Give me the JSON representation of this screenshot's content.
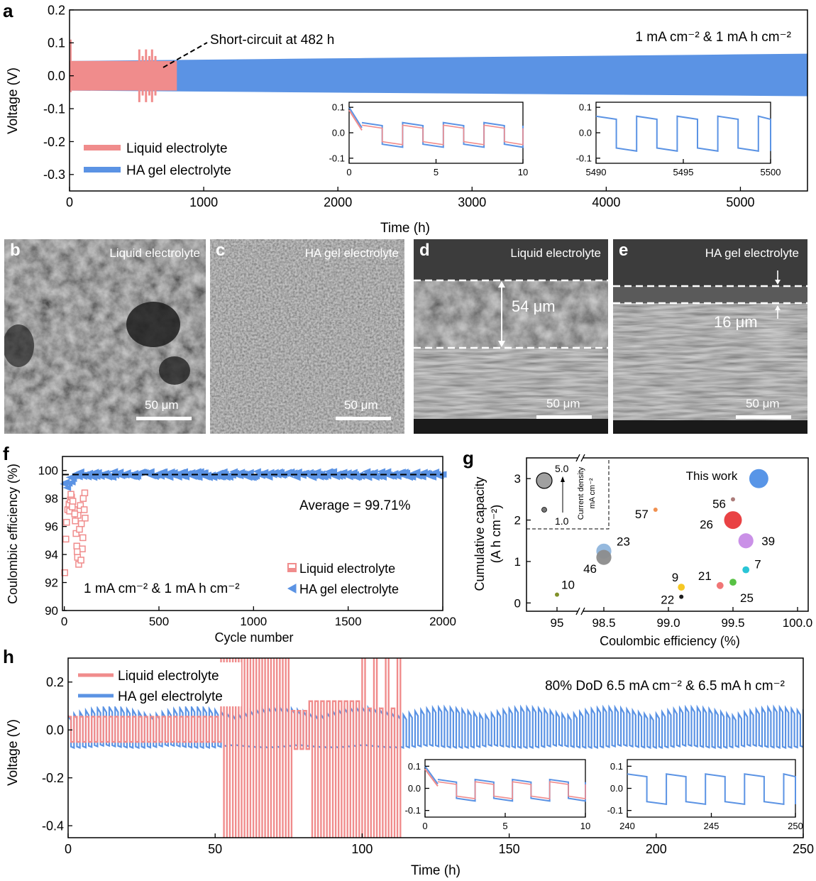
{
  "colors": {
    "liquid": "#f08c8c",
    "gel": "#5b93e4",
    "axis": "#000000"
  },
  "panel_letters": {
    "a": "a",
    "b": "b",
    "c": "c",
    "d": "d",
    "e": "e",
    "f": "f",
    "g": "g",
    "h": "h"
  },
  "sem_panels": {
    "b": {
      "label": "Liquid electrolyte",
      "scale": "50 μm"
    },
    "c": {
      "label": "HA gel electrolyte",
      "scale": "50 μm"
    },
    "d": {
      "label": "Liquid electrolyte",
      "scale": "50 μm",
      "thickness": "54 μm"
    },
    "e": {
      "label": "HA gel electrolyte",
      "scale": "50 μm",
      "thickness": "16 μm"
    }
  },
  "chart_data": [
    {
      "id": "a",
      "type": "line",
      "title": "",
      "xlabel": "Time (h)",
      "ylabel": "Voltage (V)",
      "xlim": [
        0,
        5500
      ],
      "ylim": [
        -0.35,
        0.2
      ],
      "xticks": [
        0,
        1000,
        2000,
        3000,
        4000,
        5000
      ],
      "yticks": [
        -0.3,
        -0.2,
        -0.1,
        0.0,
        0.1,
        0.2
      ],
      "ytick_labels": [
        "-0.3",
        "-0.2",
        "-0.1",
        "0.0",
        "0.1",
        "0.2"
      ],
      "series": [
        {
          "name": "Liquid electrolyte",
          "x": [
            0,
            800
          ],
          "band": [
            -0.045,
            0.045
          ],
          "spike_max": 0.11,
          "end_h": 800
        },
        {
          "name": "HA gel electrolyte",
          "x": [
            0,
            5500
          ],
          "band_start": [
            -0.045,
            0.045
          ],
          "band_end": [
            -0.062,
            0.067
          ]
        }
      ],
      "annotations": {
        "short_circuit": "Short-circuit at 482 h",
        "condition": "1 mA cm⁻² & 1 mA h cm⁻²"
      },
      "insets": [
        {
          "xlim": [
            0,
            10
          ],
          "ylim": [
            -0.12,
            0.12
          ],
          "xticks": [
            0,
            5,
            10
          ],
          "yticks": [
            "-0.1",
            "0.0",
            "0.1"
          ],
          "both_series": true
        },
        {
          "xlim": [
            5490,
            5500
          ],
          "ylim": [
            -0.12,
            0.12
          ],
          "xticks": [
            5490,
            5495,
            5500
          ],
          "yticks": [
            "-0.1",
            "0.0",
            "0.1"
          ],
          "both_series": false
        }
      ]
    },
    {
      "id": "f",
      "type": "scatter",
      "xlabel": "Cycle number",
      "ylabel": "Coulombic efficiency (%)",
      "xlim": [
        -10,
        2000
      ],
      "ylim": [
        90,
        101
      ],
      "xticks": [
        0,
        500,
        1000,
        1500,
        2000
      ],
      "yticks": [
        90,
        92,
        94,
        96,
        98,
        100
      ],
      "average_line": 99.71,
      "series": [
        {
          "name": "Liquid electrolyte",
          "x_range": [
            0,
            110
          ],
          "y_range": [
            92.7,
            98.4
          ]
        },
        {
          "name": "HA gel electrolyte",
          "x_range": [
            0,
            2000
          ],
          "y_range": [
            98.8,
            100.2
          ],
          "converged": 99.71
        }
      ],
      "annotations": {
        "average": "Average = 99.71%",
        "condition": "1 mA cm⁻² & 1 mA h cm⁻²"
      }
    },
    {
      "id": "g",
      "type": "scatter",
      "xlabel": "Coulombic efficiency (%)",
      "ylabel": "Cumulative capacity",
      "ylabel2": "(A h cm⁻²)",
      "xticks": [
        "95",
        "98.5",
        "99.0",
        "99.5",
        "100.0"
      ],
      "yticks": [
        0,
        1,
        2,
        3
      ],
      "ylim": [
        -0.2,
        3.5
      ],
      "legend": {
        "big": "5.0",
        "small": "1.0",
        "caption": "Current density",
        "unit": "mA cm⁻²"
      },
      "points": [
        {
          "label": "This work",
          "ce": 99.7,
          "cap": 3.0,
          "cd": 6.5,
          "color": "#4f8fe6"
        },
        {
          "label": "56",
          "ce": 99.5,
          "cap": 2.5,
          "cd": 1.0,
          "color": "#a87573"
        },
        {
          "label": "57",
          "ce": 98.9,
          "cap": 2.25,
          "cd": 1.0,
          "color": "#ef8a47"
        },
        {
          "label": "26",
          "ce": 99.5,
          "cap": 2.0,
          "cd": 6.0,
          "color": "#e8383a"
        },
        {
          "label": "39",
          "ce": 99.6,
          "cap": 1.5,
          "cd": 5.0,
          "color": "#c78be6"
        },
        {
          "label": "23",
          "ce": 98.5,
          "cap": 1.25,
          "cd": 5.0,
          "color": "#8fb5dc"
        },
        {
          "label": "46",
          "ce": 98.5,
          "cap": 1.1,
          "cd": 5.0,
          "color": "#8c8c8c"
        },
        {
          "label": "7",
          "ce": 99.6,
          "cap": 0.8,
          "cd": 2.0,
          "color": "#1fc2d4"
        },
        {
          "label": "21",
          "ce": 99.4,
          "cap": 0.42,
          "cd": 2.0,
          "color": "#ef6f6f"
        },
        {
          "label": "25",
          "ce": 99.5,
          "cap": 0.5,
          "cd": 2.0,
          "color": "#4fbf3a"
        },
        {
          "label": "9",
          "ce": 99.1,
          "cap": 0.38,
          "cd": 2.0,
          "color": "#f5c518"
        },
        {
          "label": "22",
          "ce": 99.1,
          "cap": 0.15,
          "cd": 1.0,
          "color": "#111111"
        },
        {
          "label": "10",
          "ce": 95.0,
          "cap": 0.2,
          "cd": 1.0,
          "color": "#7a8b1f"
        }
      ]
    },
    {
      "id": "h",
      "type": "line",
      "xlabel": "Time (h)",
      "ylabel": "Voltage (V)",
      "xlim": [
        0,
        250
      ],
      "ylim": [
        -0.45,
        0.3
      ],
      "xticks": [
        0,
        50,
        100,
        150,
        200,
        250
      ],
      "yticks": [
        -0.4,
        -0.2,
        0.0,
        0.2
      ],
      "ytick_labels": [
        "-0.4",
        "-0.2",
        "0.0",
        "0.2"
      ],
      "series": [
        {
          "name": "Liquid electrolyte",
          "x": [
            0,
            112
          ],
          "band": [
            -0.06,
            0.07
          ],
          "failure_start": 52
        },
        {
          "name": "HA gel electrolyte",
          "x": [
            0,
            250
          ],
          "band": [
            -0.065,
            0.095
          ]
        }
      ],
      "annotations": {
        "condition": "80% DoD   6.5 mA cm⁻² & 6.5 mA h cm⁻²"
      },
      "insets": [
        {
          "xlim": [
            0,
            10
          ],
          "ylim": [
            -0.13,
            0.13
          ],
          "xticks": [
            0,
            5,
            10
          ],
          "yticks": [
            "-0.1",
            "0.0",
            "0.1"
          ],
          "both_series": true
        },
        {
          "xlim": [
            240,
            250
          ],
          "ylim": [
            -0.13,
            0.13
          ],
          "xticks": [
            240,
            245,
            250
          ],
          "yticks": [
            "-0.1",
            "0.0",
            "0.1"
          ],
          "both_series": false
        }
      ]
    }
  ]
}
